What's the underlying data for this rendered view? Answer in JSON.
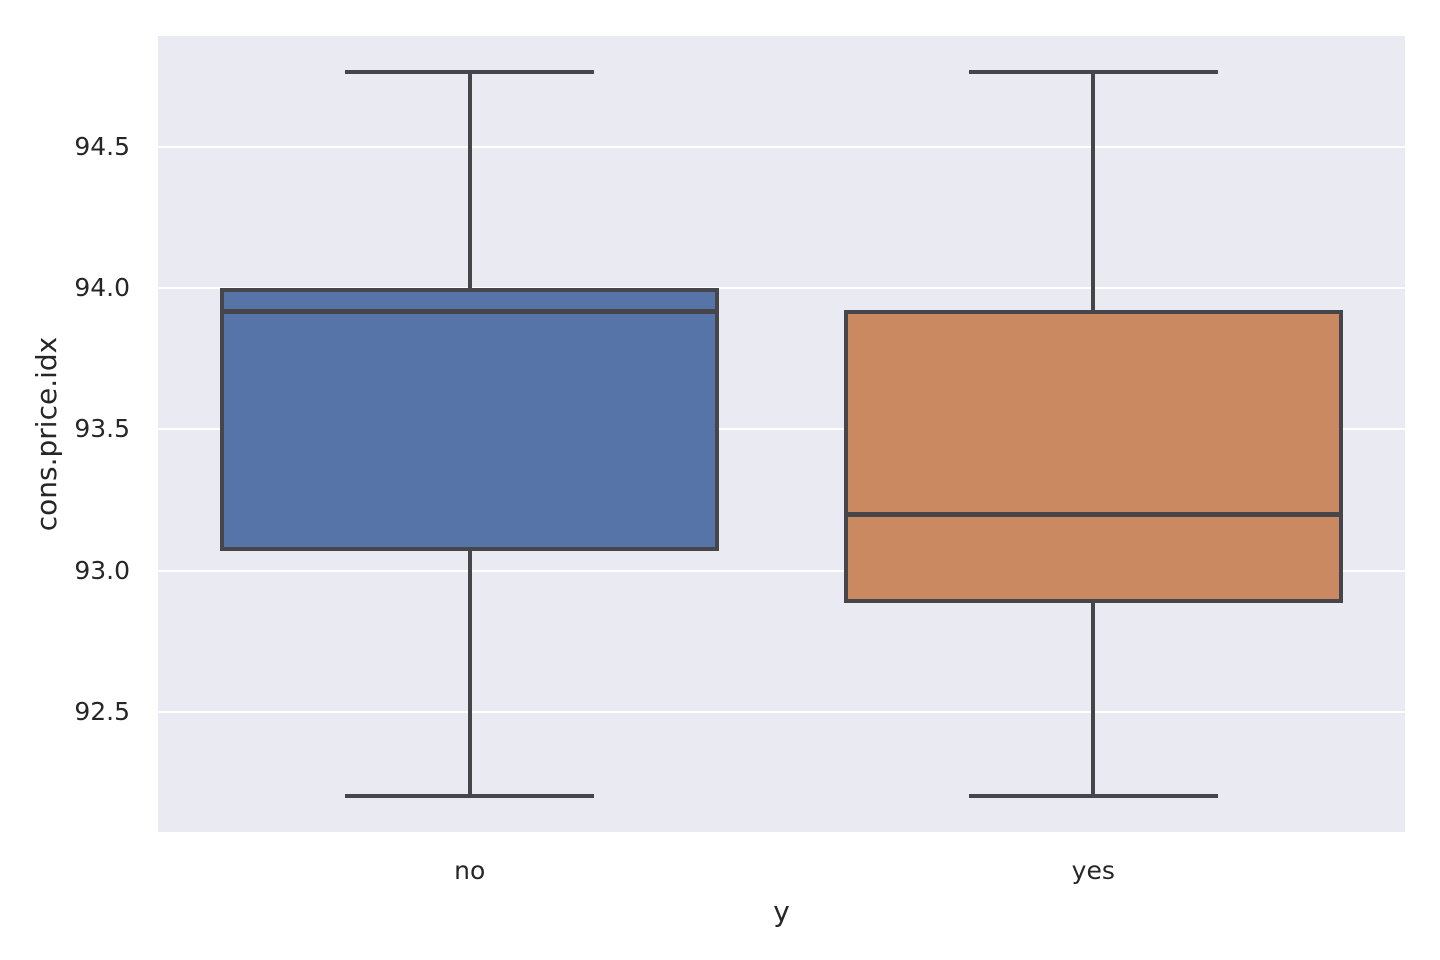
{
  "chart_data": {
    "type": "boxplot",
    "title": "",
    "xlabel": "y",
    "ylabel": "cons.price.idx",
    "categories": [
      "no",
      "yes"
    ],
    "ytick_labels": [
      "92.5",
      "93.0",
      "93.5",
      "94.0",
      "94.5"
    ],
    "yticks": [
      92.5,
      93.0,
      93.5,
      94.0,
      94.5
    ],
    "ylim": [
      92.073,
      94.895
    ],
    "grid": true,
    "legend": "none",
    "series": [
      {
        "category": "no",
        "whisker_low": 92.201,
        "q1": 93.075,
        "median": 93.918,
        "q3": 93.994,
        "whisker_high": 94.767,
        "fill_color": "#5674a7"
      },
      {
        "category": "yes",
        "whisker_low": 92.201,
        "q1": 92.893,
        "median": 93.2,
        "q3": 93.918,
        "whisker_high": 94.767,
        "fill_color": "#cb8962"
      }
    ],
    "colors": {
      "plot_background": "#eaeaf2",
      "gridline": "#ffffff",
      "line": "#46464a",
      "text": "#262626",
      "box_no": "#5674a7",
      "box_yes": "#cb8962"
    }
  }
}
